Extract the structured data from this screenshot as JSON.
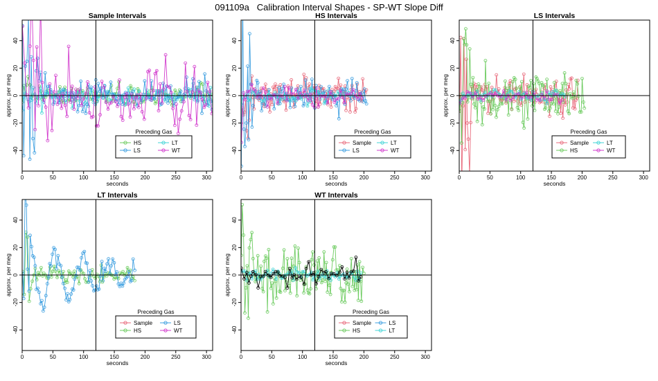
{
  "page": {
    "suptitle": "091109a   Calibration Interval Shapes - SP-WT Slope Diff"
  },
  "colors": {
    "Sample": "#e8697b",
    "HS": "#6ccb5f",
    "LS": "#3d9fe0",
    "LT": "#3fd3d6",
    "WT": "#d23bcd",
    "Ref": "#000000"
  },
  "chart_data": [
    {
      "type": "line",
      "title": "Sample Intervals",
      "xlabel": "seconds",
      "ylabel": "approx. per meg",
      "xlim": [
        0,
        310
      ],
      "ylim": [
        -55,
        55
      ],
      "xticks": [
        0,
        50,
        100,
        150,
        200,
        250,
        300
      ],
      "yticks": [
        -40,
        -20,
        0,
        20,
        40
      ],
      "vline": 120,
      "hline": 0,
      "legend": {
        "title": "Preceding Gas",
        "position": "bottom-right",
        "entries": [
          "HS",
          "LT",
          "LS",
          "WT"
        ]
      },
      "series": [
        {
          "name": "HS",
          "color": "HS",
          "seed": 11,
          "xmax": 310,
          "step": 2.6,
          "amp": 5,
          "spike_amp": 9,
          "spike_len": 20
        },
        {
          "name": "LT",
          "color": "LT",
          "seed": 12,
          "xmax": 310,
          "step": 2.6,
          "amp": 5,
          "spike_amp": 8,
          "spike_len": 20
        },
        {
          "name": "LS",
          "color": "LS",
          "seed": 13,
          "xmax": 310,
          "step": 2.4,
          "amp": 9,
          "spike_amp": 60,
          "spike_len": 25
        },
        {
          "name": "WT",
          "color": "WT",
          "seed": 14,
          "xmax": 310,
          "step": 3.0,
          "amp": 18,
          "spike_amp": 60,
          "spike_len": 30
        }
      ]
    },
    {
      "type": "line",
      "title": "HS Intervals",
      "xlabel": "seconds",
      "ylabel": "approx. per meg",
      "xlim": [
        0,
        310
      ],
      "ylim": [
        -55,
        55
      ],
      "xticks": [
        0,
        50,
        100,
        150,
        200,
        250,
        300
      ],
      "yticks": [
        -40,
        -20,
        0,
        20,
        40
      ],
      "vline": 120,
      "hline": 0,
      "legend": {
        "title": "Preceding Gas",
        "position": "bottom-right",
        "entries": [
          "Sample",
          "LT",
          "LS",
          "WT"
        ]
      },
      "series": [
        {
          "name": "Sample",
          "color": "Sample",
          "seed": 21,
          "xmax": 205,
          "step": 1.8,
          "amp": 8,
          "spike_amp": 30,
          "spike_len": 15
        },
        {
          "name": "LS",
          "color": "LS",
          "seed": 22,
          "xmax": 205,
          "step": 2.0,
          "amp": 8,
          "spike_amp": 60,
          "spike_len": 18
        },
        {
          "name": "LT",
          "color": "LT",
          "seed": 23,
          "xmax": 180,
          "step": 3.0,
          "amp": 4,
          "spike_amp": 6,
          "spike_len": 10
        },
        {
          "name": "WT",
          "color": "WT",
          "seed": 24,
          "xmax": 200,
          "step": 3.5,
          "amp": 5,
          "spike_amp": 40,
          "spike_len": 10
        }
      ]
    },
    {
      "type": "line",
      "title": "LS Intervals",
      "xlabel": "seconds",
      "ylabel": "approx. per meg",
      "xlim": [
        0,
        310
      ],
      "ylim": [
        -55,
        55
      ],
      "xticks": [
        0,
        50,
        100,
        150,
        200,
        250,
        300
      ],
      "yticks": [
        -40,
        -20,
        0,
        20,
        40
      ],
      "vline": 120,
      "hline": 0,
      "legend": {
        "title": "Preceding Gas",
        "position": "bottom-right",
        "entries": [
          "Sample",
          "LT",
          "HS",
          "WT"
        ]
      },
      "series": [
        {
          "name": "Sample",
          "color": "Sample",
          "seed": 31,
          "xmax": 195,
          "step": 1.8,
          "amp": 9,
          "spike_amp": 60,
          "spike_len": 18
        },
        {
          "name": "HS",
          "color": "HS",
          "seed": 32,
          "xmax": 205,
          "step": 1.8,
          "amp": 14,
          "spike_amp": 60,
          "spike_len": 18
        },
        {
          "name": "LT",
          "color": "LT",
          "seed": 33,
          "xmax": 175,
          "step": 3.0,
          "amp": 3,
          "spike_amp": 4,
          "spike_len": 10
        },
        {
          "name": "WT",
          "color": "WT",
          "seed": 34,
          "xmax": 170,
          "step": 4.0,
          "amp": 3,
          "spike_amp": 4,
          "spike_len": 10
        }
      ]
    },
    {
      "type": "line",
      "title": "LT Intervals",
      "xlabel": "seconds",
      "ylabel": "approx. per meg",
      "xlim": [
        0,
        310
      ],
      "ylim": [
        -55,
        55
      ],
      "xticks": [
        0,
        50,
        100,
        150,
        200,
        250,
        300
      ],
      "yticks": [
        -40,
        -20,
        0,
        20,
        40
      ],
      "vline": 120,
      "hline": 0,
      "legend": {
        "title": "Preceding Gas",
        "position": "bottom-right",
        "entries": [
          "Sample",
          "LS",
          "HS",
          "WT"
        ]
      },
      "series": [
        {
          "name": "HS",
          "color": "HS",
          "seed": 41,
          "xmax": 185,
          "step": 2.4,
          "amp": 4,
          "spike_amp": 40,
          "spike_len": 15
        },
        {
          "name": "LS",
          "color": "LS",
          "seed": 42,
          "xmax": 185,
          "step": 2.2,
          "amp": 6,
          "spike_amp": 40,
          "spike_len": 15,
          "wave": 30
        }
      ]
    },
    {
      "type": "line",
      "title": "WT Intervals",
      "xlabel": "seconds",
      "ylabel": "approx. per meg",
      "xlim": [
        0,
        310
      ],
      "ylim": [
        -55,
        55
      ],
      "xticks": [
        0,
        50,
        100,
        150,
        200,
        250,
        300
      ],
      "yticks": [
        -40,
        -20,
        0,
        20,
        40
      ],
      "vline": 120,
      "hline": 0,
      "legend": {
        "title": "Preceding Gas",
        "position": "bottom-right",
        "entries": [
          "Sample",
          "LS",
          "HS",
          "LT"
        ]
      },
      "series": [
        {
          "name": "HS",
          "color": "HS",
          "seed": 51,
          "xmax": 200,
          "step": 1.8,
          "amp": 14,
          "spike_amp": 55,
          "spike_len": 18
        },
        {
          "name": "LT",
          "color": "LT",
          "seed": 52,
          "xmax": 195,
          "step": 2.8,
          "amp": 3,
          "spike_amp": 4,
          "spike_len": 10
        },
        {
          "name": "Ref",
          "color": "Ref",
          "seed": 53,
          "xmax": 195,
          "step": 4.0,
          "amp": 5,
          "spike_amp": 10,
          "spike_len": 15
        }
      ]
    }
  ]
}
